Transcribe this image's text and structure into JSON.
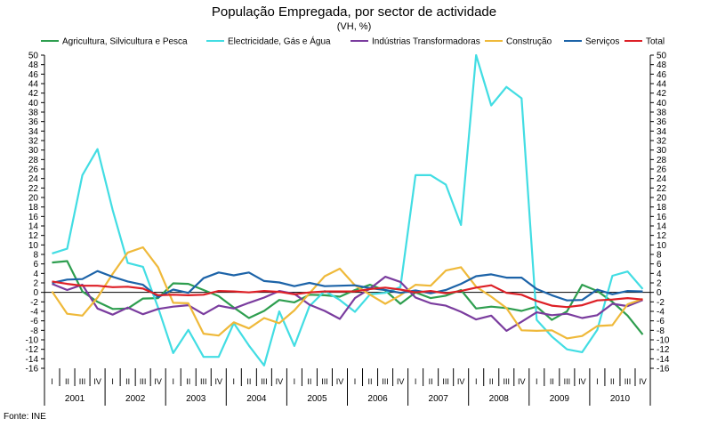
{
  "chart_data": {
    "type": "line",
    "title": "População Empregada, por sector de actividade",
    "subtitle": "(VH, %)",
    "source": "Fonte: INE",
    "ylim": [
      -16,
      50
    ],
    "ytick_step": 2,
    "quarters": [
      "I",
      "II",
      "III",
      "IV"
    ],
    "years": [
      "2001",
      "2002",
      "2003",
      "2004",
      "2005",
      "2006",
      "2007",
      "2008",
      "2009",
      "2010"
    ],
    "series": [
      {
        "name": "Agricultura, Silvicultura e Pesca",
        "color": "#2e9e4f",
        "values": [
          6.3,
          6.6,
          0.2,
          -2.0,
          -3.5,
          -3.4,
          -1.3,
          -1.2,
          1.9,
          1.8,
          0.5,
          -0.8,
          -3.2,
          -5.4,
          -3.9,
          -1.6,
          -2.1,
          -0.5,
          -0.6,
          -0.9,
          0.5,
          1.6,
          0.4,
          -2.4,
          0.0,
          -1.2,
          -0.7,
          0.5,
          -3.4,
          -3.0,
          -3.3,
          -3.9,
          -3.0,
          -5.8,
          -4.0,
          1.6,
          0.3,
          -2.0,
          -4.9,
          -8.9
        ]
      },
      {
        "name": "Electricidade, Gás e Água",
        "color": "#42dde3",
        "values": [
          8.2,
          9.2,
          24.7,
          30.2,
          17.4,
          6.2,
          5.4,
          -3.2,
          -12.8,
          -7.9,
          -13.6,
          -13.6,
          -6.5,
          -11.2,
          -15.4,
          -4.0,
          -11.3,
          -2.9,
          0.3,
          -1.6,
          -4.1,
          -0.4,
          -0.1,
          1.1,
          24.7,
          24.7,
          22.7,
          14.2,
          50.0,
          39.4,
          43.3,
          40.9,
          -5.8,
          -9.3,
          -12.0,
          -12.6,
          -7.9,
          3.5,
          4.4,
          0.7
        ]
      },
      {
        "name": "Indústrias Transformadoras",
        "color": "#7a3c9e",
        "values": [
          1.8,
          0.5,
          1.6,
          -3.4,
          -4.7,
          -3.2,
          -4.6,
          -3.5,
          -3.0,
          -2.7,
          -4.6,
          -2.8,
          -3.4,
          -2.2,
          -1.1,
          0.3,
          -0.3,
          -2.6,
          -3.9,
          -5.6,
          -1.2,
          0.8,
          3.3,
          2.2,
          -1.1,
          -2.3,
          -2.8,
          -4.1,
          -5.7,
          -4.9,
          -8.1,
          -6.2,
          -4.2,
          -4.8,
          -4.5,
          -5.4,
          -4.8,
          -2.4,
          -2.9,
          -1.6
        ]
      },
      {
        "name": "Construção",
        "color": "#efb93a",
        "values": [
          0.2,
          -4.5,
          -4.9,
          -1.1,
          3.9,
          8.4,
          9.5,
          5.3,
          -2.2,
          -2.3,
          -8.7,
          -9.1,
          -6.3,
          -7.6,
          -5.4,
          -6.5,
          -3.8,
          -0.2,
          3.4,
          5.0,
          1.5,
          -0.5,
          -2.4,
          -0.6,
          1.6,
          1.4,
          4.6,
          5.3,
          1.2,
          -0.9,
          -3.3,
          -8.0,
          -8.1,
          -8.0,
          -9.7,
          -9.2,
          -7.1,
          -6.9,
          -2.5,
          -1.4
        ]
      },
      {
        "name": "Serviços",
        "color": "#1c63a8",
        "values": [
          2.0,
          2.7,
          2.8,
          4.5,
          3.3,
          2.3,
          1.6,
          -1.0,
          0.6,
          -0.1,
          3.0,
          4.2,
          3.6,
          4.2,
          2.4,
          2.1,
          1.3,
          2.0,
          1.3,
          1.4,
          1.5,
          0.9,
          0.5,
          -0.1,
          0.4,
          -0.2,
          0.5,
          1.8,
          3.4,
          3.8,
          3.1,
          3.1,
          0.7,
          -0.6,
          -1.7,
          -1.6,
          0.6,
          -0.4,
          0.3,
          0.2
        ]
      },
      {
        "name": "Total",
        "color": "#dd1f26",
        "values": [
          2.3,
          1.8,
          1.4,
          1.4,
          1.1,
          1.2,
          0.8,
          -0.6,
          -0.5,
          -0.6,
          -0.5,
          0.3,
          0.2,
          0.0,
          0.3,
          0.1,
          -0.4,
          0.0,
          0.2,
          0.2,
          0.2,
          0.7,
          1.0,
          0.6,
          0.0,
          0.3,
          -0.2,
          0.3,
          1.0,
          1.5,
          -0.1,
          -0.5,
          -1.8,
          -2.8,
          -3.1,
          -2.7,
          -1.7,
          -1.5,
          -1.2,
          -1.5
        ]
      }
    ]
  }
}
